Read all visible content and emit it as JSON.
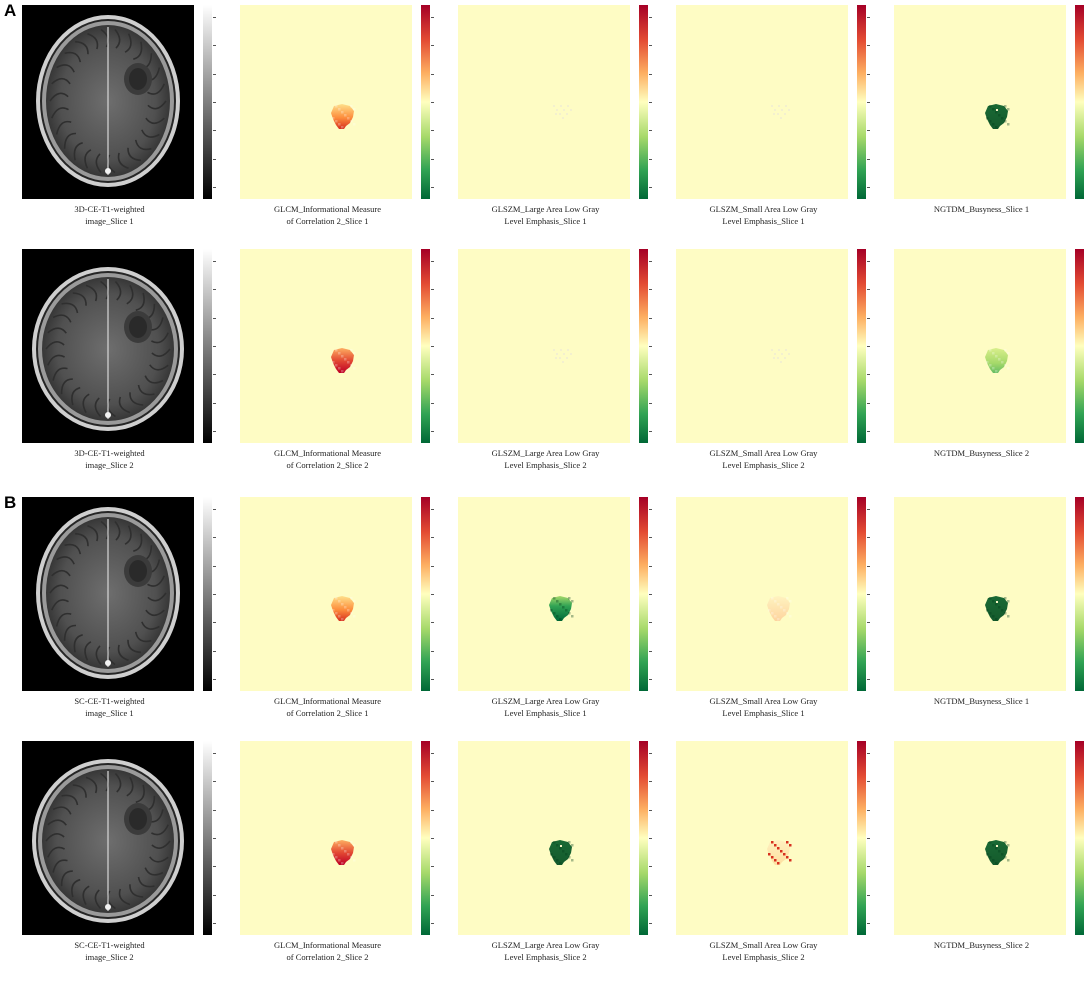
{
  "panels": [
    {
      "label": "A",
      "rows": [
        {
          "captions": [
            [
              "3D-CE-T1-weighted",
              "image_Slice 1"
            ],
            [
              "GLCM_Informational Measure",
              "of Correlation 2_Slice 1"
            ],
            [
              "GLSZM_Large Area Low Gray",
              "Level Emphasis_Slice 1"
            ],
            [
              "GLSZM_Small Area Low Gray",
              "Level Emphasis_Slice 1"
            ],
            [
              "NGTDM_Busyness_Slice 1"
            ]
          ]
        },
        {
          "captions": [
            [
              "3D-CE-T1-weighted",
              "image_Slice 2"
            ],
            [
              "GLCM_Informational Measure",
              "of Correlation 2_Slice 2"
            ],
            [
              "GLSZM_Large Area Low Gray",
              "Level Emphasis_Slice 2"
            ],
            [
              "GLSZM_Small Area Low Gray",
              "Level Emphasis_Slice 2"
            ],
            [
              "NGTDM_Busyness_Slice 2"
            ]
          ]
        }
      ]
    },
    {
      "label": "B",
      "rows": [
        {
          "captions": [
            [
              "SC-CE-T1-weighted",
              "image_Slice 1"
            ],
            [
              "GLCM_Informational Measure",
              "of Correlation 2_Slice 1"
            ],
            [
              "GLSZM_Large Area Low Gray",
              "Level Emphasis_Slice 1"
            ],
            [
              "GLSZM_Small Area Low Gray",
              "Level Emphasis_Slice 1"
            ],
            [
              "NGTDM_Busyness_Slice 1"
            ]
          ]
        },
        {
          "captions": [
            [
              "SC-CE-T1-weighted",
              "image_Slice 2"
            ],
            [
              "GLCM_Informational Measure",
              "of Correlation 2_Slice 2"
            ],
            [
              "GLSZM_Large Area Low Gray",
              "Level Emphasis_Slice 2"
            ],
            [
              "GLSZM_Small Area Low Gray",
              "Level Emphasis_Slice 2"
            ],
            [
              "NGTDM_Busyness_Slice 2"
            ]
          ]
        }
      ]
    }
  ],
  "colors": {
    "heatmap_background": "#fefcc4",
    "colormap_top": "#a50026",
    "colormap_mid": "#ffffbf",
    "colormap_bottom": "#006837",
    "lesion_dark_green": "#1a6a35"
  },
  "tile_styles": [
    [
      "mri",
      "orange-red",
      "faint",
      "faint",
      "dark-green"
    ],
    [
      "mri",
      "red",
      "faint",
      "faint",
      "light-green"
    ],
    [
      "mri",
      "orange-red",
      "green-gradient",
      "faint-orange",
      "dark-green"
    ],
    [
      "mri",
      "red",
      "dark-green",
      "speckled-red",
      "dark-green"
    ]
  ]
}
